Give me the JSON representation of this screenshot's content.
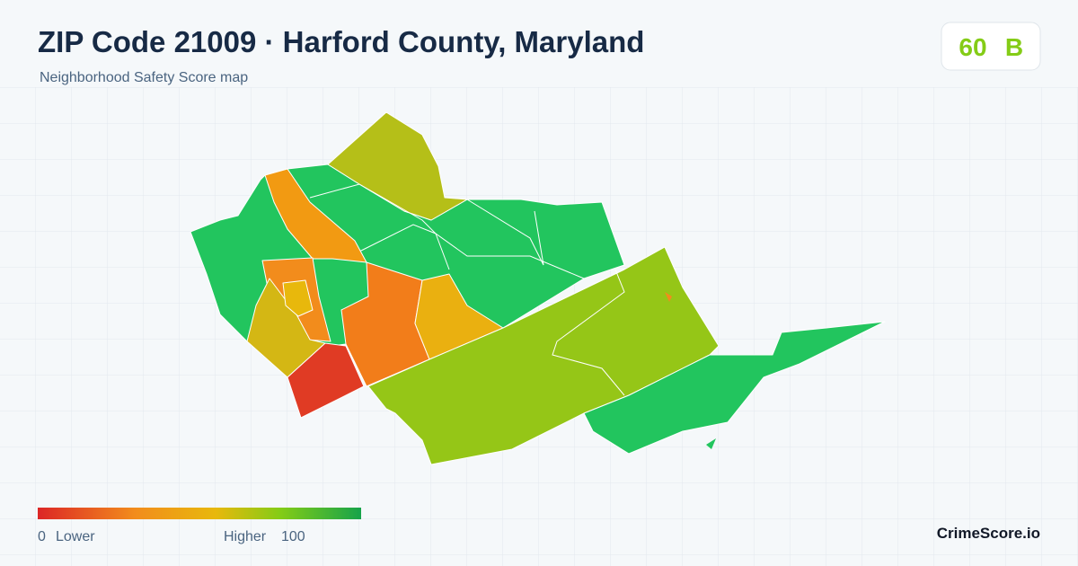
{
  "header": {
    "title": "ZIP Code 21009 · Harford County, Maryland",
    "subtitle": "Neighborhood Safety Score map"
  },
  "score": {
    "value": 60,
    "grade": "B"
  },
  "legend": {
    "min": 0,
    "min_label": "Lower",
    "max_label": "Higher",
    "max": 100
  },
  "brand": "CrimeScore.io"
}
